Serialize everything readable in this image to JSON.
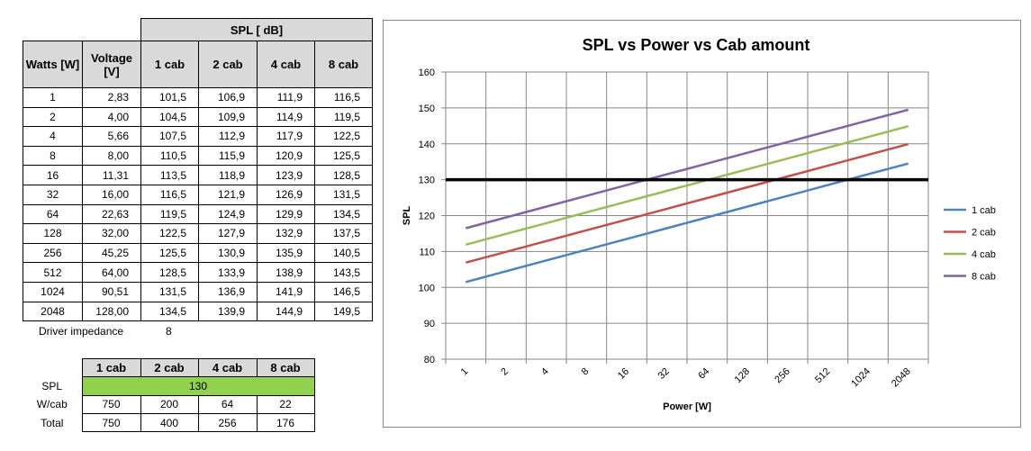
{
  "table": {
    "spl_header": "SPL [ dB]",
    "col_watts": "Watts [W]",
    "col_voltage": "Voltage [V]",
    "cab_headers": [
      "1 cab",
      "2 cab",
      "4 cab",
      "8 cab"
    ],
    "rows": [
      {
        "watts": "1",
        "voltage": "2,83",
        "c1": "101,5",
        "c2": "106,9",
        "c4": "111,9",
        "c8": "116,5"
      },
      {
        "watts": "2",
        "voltage": "4,00",
        "c1": "104,5",
        "c2": "109,9",
        "c4": "114,9",
        "c8": "119,5"
      },
      {
        "watts": "4",
        "voltage": "5,66",
        "c1": "107,5",
        "c2": "112,9",
        "c4": "117,9",
        "c8": "122,5"
      },
      {
        "watts": "8",
        "voltage": "8,00",
        "c1": "110,5",
        "c2": "115,9",
        "c4": "120,9",
        "c8": "125,5"
      },
      {
        "watts": "16",
        "voltage": "11,31",
        "c1": "113,5",
        "c2": "118,9",
        "c4": "123,9",
        "c8": "128,5"
      },
      {
        "watts": "32",
        "voltage": "16,00",
        "c1": "116,5",
        "c2": "121,9",
        "c4": "126,9",
        "c8": "131,5"
      },
      {
        "watts": "64",
        "voltage": "22,63",
        "c1": "119,5",
        "c2": "124,9",
        "c4": "129,9",
        "c8": "134,5"
      },
      {
        "watts": "128",
        "voltage": "32,00",
        "c1": "122,5",
        "c2": "127,9",
        "c4": "132,9",
        "c8": "137,5"
      },
      {
        "watts": "256",
        "voltage": "45,25",
        "c1": "125,5",
        "c2": "130,9",
        "c4": "135,9",
        "c8": "140,5"
      },
      {
        "watts": "512",
        "voltage": "64,00",
        "c1": "128,5",
        "c2": "133,9",
        "c4": "138,9",
        "c8": "143,5"
      },
      {
        "watts": "1024",
        "voltage": "90,51",
        "c1": "131,5",
        "c2": "136,9",
        "c4": "141,9",
        "c8": "146,5"
      },
      {
        "watts": "2048",
        "voltage": "128,00",
        "c1": "134,5",
        "c2": "139,9",
        "c4": "144,9",
        "c8": "149,5"
      }
    ]
  },
  "impedance": {
    "label": "Driver impedance",
    "value": "8"
  },
  "summary": {
    "cab_headers": [
      "1 cab",
      "2 cab",
      "4 cab",
      "8 cab"
    ],
    "spl_label": "SPL",
    "spl_value": "130",
    "wcab_label": "W/cab",
    "wcab": [
      "750",
      "200",
      "64",
      "22"
    ],
    "total_label": "Total",
    "total": [
      "750",
      "400",
      "256",
      "176"
    ]
  },
  "chart_data": {
    "type": "line",
    "title": "SPL vs Power vs Cab amount",
    "xlabel": "Power [W]",
    "ylabel": "SPL",
    "categories": [
      "1",
      "2",
      "4",
      "8",
      "16",
      "32",
      "64",
      "128",
      "256",
      "512",
      "1024",
      "2048"
    ],
    "ylim": [
      80,
      160
    ],
    "yticks": [
      80,
      90,
      100,
      110,
      120,
      130,
      140,
      150,
      160
    ],
    "grid": true,
    "legend_position": "right",
    "threshold": 130,
    "threshold_color": "#000000",
    "series": [
      {
        "name": "1 cab",
        "color": "#4f81bd",
        "values": [
          101.5,
          104.5,
          107.5,
          110.5,
          113.5,
          116.5,
          119.5,
          122.5,
          125.5,
          128.5,
          131.5,
          134.5
        ]
      },
      {
        "name": "2 cab",
        "color": "#c0504d",
        "values": [
          106.9,
          109.9,
          112.9,
          115.9,
          118.9,
          121.9,
          124.9,
          127.9,
          130.9,
          133.9,
          136.9,
          139.9
        ]
      },
      {
        "name": "4 cab",
        "color": "#9bbb59",
        "values": [
          111.9,
          114.9,
          117.9,
          120.9,
          123.9,
          126.9,
          129.9,
          132.9,
          135.9,
          138.9,
          141.9,
          144.9
        ]
      },
      {
        "name": "8 cab",
        "color": "#8064a2",
        "values": [
          116.5,
          119.5,
          122.5,
          125.5,
          128.5,
          131.5,
          134.5,
          137.5,
          140.5,
          143.5,
          146.5,
          149.5
        ]
      }
    ]
  }
}
